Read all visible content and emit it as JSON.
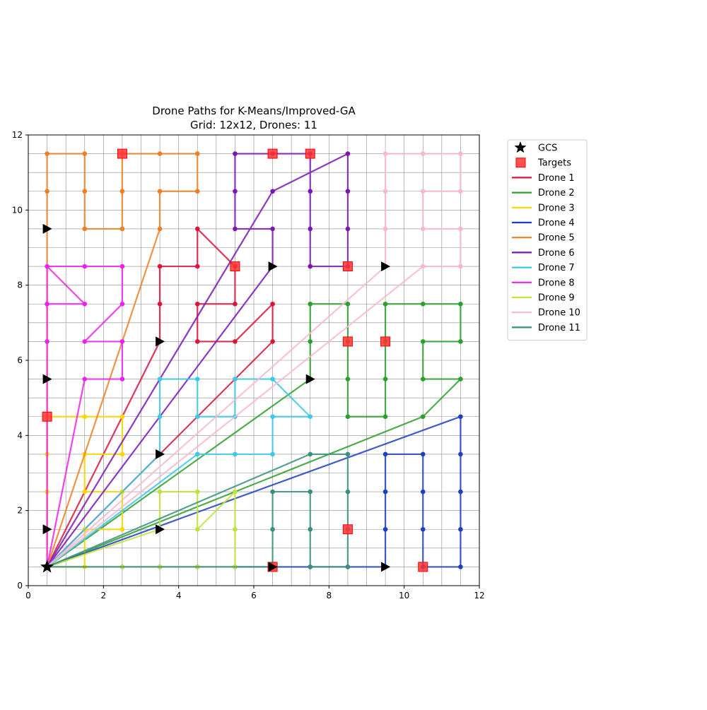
{
  "chart_data": {
    "type": "line",
    "title": "Drone Paths for K-Means/Improved-GA",
    "subtitle": "Grid: 12x12, Drones: 11",
    "xlabel": "",
    "ylabel": "",
    "xlim": [
      0,
      12
    ],
    "ylim": [
      0,
      12
    ],
    "xticks": [
      "0",
      "2",
      "4",
      "6",
      "8",
      "10",
      "12"
    ],
    "yticks": [
      "0",
      "2",
      "4",
      "6",
      "8",
      "10",
      "12"
    ],
    "grid": true,
    "grid_step": 0.5,
    "legend_position": "outside-upper-right",
    "gcs": {
      "name": "GCS",
      "x": 0.5,
      "y": 0.5,
      "color": "#000000"
    },
    "targets": {
      "name": "Targets",
      "color": "#ff3333",
      "points": [
        [
          2.5,
          11.5
        ],
        [
          6.5,
          11.5
        ],
        [
          7.5,
          11.5
        ],
        [
          5.5,
          8.5
        ],
        [
          8.5,
          8.5
        ],
        [
          8.5,
          6.5
        ],
        [
          9.5,
          6.5
        ],
        [
          0.5,
          4.5
        ],
        [
          8.5,
          1.5
        ],
        [
          6.5,
          0.5
        ],
        [
          10.5,
          0.5
        ]
      ]
    },
    "arrows": [
      [
        0.5,
        9.5
      ],
      [
        0.5,
        5.5
      ],
      [
        0.5,
        1.5
      ],
      [
        3.5,
        6.5
      ],
      [
        3.5,
        3.5
      ],
      [
        3.5,
        1.5
      ],
      [
        6.5,
        8.5
      ],
      [
        7.5,
        5.5
      ],
      [
        9.5,
        8.5
      ],
      [
        6.5,
        0.5
      ],
      [
        9.5,
        0.5
      ]
    ],
    "series": [
      {
        "name": "Drone 1",
        "color": "#dc143c",
        "points": [
          [
            0.5,
            0.5
          ],
          [
            3.5,
            6.5
          ],
          [
            3.5,
            7.5
          ],
          [
            3.5,
            8.5
          ],
          [
            4.5,
            8.5
          ],
          [
            4.5,
            9.5
          ],
          [
            5.5,
            8.5
          ],
          [
            5.5,
            7.5
          ],
          [
            4.5,
            7.5
          ],
          [
            4.5,
            6.5
          ],
          [
            5.5,
            6.5
          ],
          [
            6.5,
            7.5
          ],
          [
            6.5,
            6.5
          ],
          [
            0.5,
            0.5
          ]
        ]
      },
      {
        "name": "Drone 2",
        "color": "#2ca02c",
        "points": [
          [
            0.5,
            0.5
          ],
          [
            7.5,
            5.5
          ],
          [
            7.5,
            6.5
          ],
          [
            7.5,
            7.5
          ],
          [
            8.5,
            7.5
          ],
          [
            8.5,
            6.5
          ],
          [
            8.5,
            5.5
          ],
          [
            8.5,
            4.5
          ],
          [
            9.5,
            4.5
          ],
          [
            9.5,
            5.5
          ],
          [
            9.5,
            6.5
          ],
          [
            9.5,
            7.5
          ],
          [
            10.5,
            7.5
          ],
          [
            11.5,
            7.5
          ],
          [
            11.5,
            6.5
          ],
          [
            10.5,
            6.5
          ],
          [
            10.5,
            5.5
          ],
          [
            11.5,
            5.5
          ],
          [
            10.5,
            4.5
          ],
          [
            0.5,
            0.5
          ]
        ]
      },
      {
        "name": "Drone 3",
        "color": "#ffd700",
        "points": [
          [
            0.5,
            0.5
          ],
          [
            1.5,
            0.5
          ],
          [
            1.5,
            1.5
          ],
          [
            2.5,
            1.5
          ],
          [
            2.5,
            2.5
          ],
          [
            1.5,
            2.5
          ],
          [
            1.5,
            3.5
          ],
          [
            2.5,
            3.5
          ],
          [
            2.5,
            4.5
          ],
          [
            1.5,
            4.5
          ],
          [
            0.5,
            4.5
          ],
          [
            0.5,
            3.5
          ],
          [
            0.5,
            2.5
          ],
          [
            0.5,
            1.5
          ],
          [
            0.5,
            0.5
          ]
        ]
      },
      {
        "name": "Drone 4",
        "color": "#1f3fbf",
        "points": [
          [
            0.5,
            0.5
          ],
          [
            2.5,
            0.5
          ],
          [
            3.5,
            0.5
          ],
          [
            4.5,
            0.5
          ],
          [
            5.5,
            0.5
          ],
          [
            6.5,
            0.5
          ],
          [
            7.5,
            0.5
          ],
          [
            8.5,
            0.5
          ],
          [
            9.5,
            0.5
          ],
          [
            9.5,
            1.5
          ],
          [
            9.5,
            2.5
          ],
          [
            9.5,
            3.5
          ],
          [
            10.5,
            3.5
          ],
          [
            10.5,
            2.5
          ],
          [
            10.5,
            1.5
          ],
          [
            10.5,
            0.5
          ],
          [
            11.5,
            0.5
          ],
          [
            11.5,
            1.5
          ],
          [
            11.5,
            2.5
          ],
          [
            11.5,
            3.5
          ],
          [
            11.5,
            4.5
          ],
          [
            0.5,
            0.5
          ]
        ]
      },
      {
        "name": "Drone 5",
        "color": "#f07f24",
        "points": [
          [
            0.5,
            0.5
          ],
          [
            0.5,
            9.5
          ],
          [
            0.5,
            10.5
          ],
          [
            0.5,
            11.5
          ],
          [
            1.5,
            11.5
          ],
          [
            1.5,
            10.5
          ],
          [
            1.5,
            9.5
          ],
          [
            2.5,
            9.5
          ],
          [
            2.5,
            10.5
          ],
          [
            2.5,
            11.5
          ],
          [
            3.5,
            11.5
          ],
          [
            4.5,
            11.5
          ],
          [
            4.5,
            10.5
          ],
          [
            3.5,
            10.5
          ],
          [
            3.5,
            9.5
          ],
          [
            0.5,
            0.5
          ]
        ]
      },
      {
        "name": "Drone 6",
        "color": "#7b16b4",
        "points": [
          [
            0.5,
            0.5
          ],
          [
            6.5,
            8.5
          ],
          [
            6.5,
            9.5
          ],
          [
            5.5,
            9.5
          ],
          [
            5.5,
            10.5
          ],
          [
            5.5,
            11.5
          ],
          [
            6.5,
            11.5
          ],
          [
            7.5,
            11.5
          ],
          [
            7.5,
            10.5
          ],
          [
            7.5,
            9.5
          ],
          [
            7.5,
            8.5
          ],
          [
            8.5,
            8.5
          ],
          [
            8.5,
            9.5
          ],
          [
            8.5,
            10.5
          ],
          [
            8.5,
            11.5
          ],
          [
            6.5,
            10.5
          ],
          [
            0.5,
            0.5
          ]
        ]
      },
      {
        "name": "Drone 7",
        "color": "#3cc8ea",
        "points": [
          [
            0.5,
            0.5
          ],
          [
            3.5,
            3.5
          ],
          [
            3.5,
            4.5
          ],
          [
            3.5,
            5.5
          ],
          [
            4.5,
            5.5
          ],
          [
            4.5,
            4.5
          ],
          [
            5.5,
            4.5
          ],
          [
            5.5,
            5.5
          ],
          [
            6.5,
            5.5
          ],
          [
            7.5,
            4.5
          ],
          [
            6.5,
            4.5
          ],
          [
            6.5,
            3.5
          ],
          [
            5.5,
            3.5
          ],
          [
            4.5,
            3.5
          ],
          [
            0.5,
            0.5
          ]
        ]
      },
      {
        "name": "Drone 8",
        "color": "#ee22ee",
        "points": [
          [
            0.5,
            0.5
          ],
          [
            0.5,
            5.5
          ],
          [
            0.5,
            6.5
          ],
          [
            0.5,
            7.5
          ],
          [
            0.5,
            8.5
          ],
          [
            1.5,
            8.5
          ],
          [
            2.5,
            8.5
          ],
          [
            2.5,
            7.5
          ],
          [
            1.5,
            6.5
          ],
          [
            2.5,
            6.5
          ],
          [
            2.5,
            5.5
          ],
          [
            1.5,
            5.5
          ],
          [
            0.5,
            0.5
          ],
          [
            0.5,
            7.5
          ],
          [
            1.5,
            7.5
          ],
          [
            0.5,
            8.5
          ]
        ]
      },
      {
        "name": "Drone 9",
        "color": "#bfe53a",
        "points": [
          [
            0.5,
            0.5
          ],
          [
            3.5,
            1.5
          ],
          [
            3.5,
            2.5
          ],
          [
            4.5,
            2.5
          ],
          [
            4.5,
            1.5
          ],
          [
            5.5,
            2.5
          ],
          [
            5.5,
            1.5
          ],
          [
            5.5,
            0.5
          ],
          [
            4.5,
            0.5
          ],
          [
            3.5,
            0.5
          ],
          [
            2.5,
            0.5
          ],
          [
            0.5,
            0.5
          ]
        ]
      },
      {
        "name": "Drone 10",
        "color": "#f5b8d0",
        "points": [
          [
            0.5,
            0.5
          ],
          [
            9.5,
            8.5
          ],
          [
            9.5,
            9.5
          ],
          [
            9.5,
            10.5
          ],
          [
            9.5,
            11.5
          ],
          [
            10.5,
            11.5
          ],
          [
            11.5,
            11.5
          ],
          [
            11.5,
            10.5
          ],
          [
            10.5,
            10.5
          ],
          [
            10.5,
            9.5
          ],
          [
            11.5,
            9.5
          ],
          [
            11.5,
            8.5
          ],
          [
            10.5,
            8.5
          ],
          [
            0.5,
            0.5
          ]
        ]
      },
      {
        "name": "Drone 11",
        "color": "#3a8f7f",
        "points": [
          [
            0.5,
            0.5
          ],
          [
            6.5,
            0.5
          ],
          [
            6.5,
            1.5
          ],
          [
            6.5,
            2.5
          ],
          [
            7.5,
            2.5
          ],
          [
            7.5,
            1.5
          ],
          [
            7.5,
            0.5
          ],
          [
            8.5,
            0.5
          ],
          [
            8.5,
            1.5
          ],
          [
            8.5,
            2.5
          ],
          [
            8.5,
            3.5
          ],
          [
            7.5,
            3.5
          ],
          [
            0.5,
            0.5
          ]
        ]
      }
    ]
  }
}
